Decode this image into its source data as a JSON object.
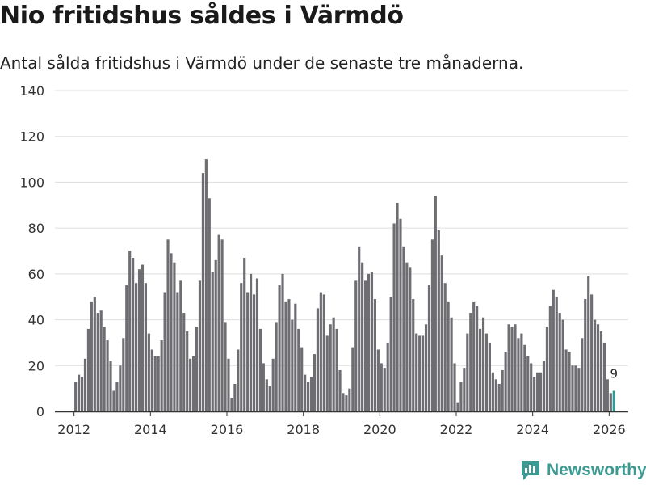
{
  "title": "Nio fritidshus såldes i Värmdö",
  "subtitle": "Antal sålda fritidshus i Värmdö under de senaste tre månaderna.",
  "brand": {
    "name": "Newsworthy"
  },
  "colors": {
    "bar": "#6e6d72",
    "highlight": "#2f9c93",
    "grid": "#dddddd",
    "axis": "#333333",
    "brand": "#3c9a93"
  },
  "chart_data": {
    "type": "bar",
    "ylim": [
      0,
      140
    ],
    "yticks": [
      0,
      20,
      40,
      60,
      80,
      100,
      120,
      140
    ],
    "xticks": [
      "2012",
      "2014",
      "2016",
      "2018",
      "2020",
      "2022",
      "2024",
      "2026"
    ],
    "xlim": [
      "2011-07",
      "2026-07"
    ],
    "grid": true,
    "highlight_label": "9",
    "series": [
      {
        "start": "2012-01",
        "frequency": "monthly",
        "values": [
          13,
          16,
          15,
          23,
          36,
          48,
          50,
          43,
          44,
          37,
          31,
          22,
          9,
          13,
          20,
          32,
          55,
          70,
          67,
          56,
          62,
          64,
          56,
          34,
          27,
          24,
          24,
          31,
          52,
          75,
          69,
          65,
          52,
          57,
          43,
          35,
          23,
          24,
          37,
          57,
          104,
          110,
          93,
          61,
          66,
          77,
          75,
          39,
          23,
          6,
          12,
          27,
          56,
          67,
          52,
          60,
          51,
          58,
          36,
          21,
          14,
          11,
          23,
          39,
          55,
          60,
          48,
          49,
          40,
          47,
          36,
          28,
          16,
          13,
          15,
          25,
          45,
          52,
          51,
          33,
          38,
          41,
          36,
          18,
          8,
          7,
          10,
          28,
          57,
          72,
          65,
          57,
          60,
          61,
          49,
          27,
          21,
          19,
          30,
          50,
          82,
          91,
          84,
          72,
          65,
          63,
          49,
          34,
          33,
          33,
          38,
          55,
          75,
          94,
          79,
          68,
          56,
          48,
          41,
          21,
          4,
          13,
          19,
          34,
          43,
          48,
          46,
          36,
          41,
          34,
          30,
          17,
          14,
          12,
          18,
          26,
          38,
          37,
          38,
          32,
          34,
          29,
          24,
          21,
          15,
          17,
          17,
          22,
          37,
          46,
          53,
          50,
          43,
          40,
          27,
          26,
          20,
          20,
          19,
          32,
          49,
          59,
          51,
          40,
          38,
          35,
          30,
          14,
          8,
          9
        ]
      }
    ]
  }
}
